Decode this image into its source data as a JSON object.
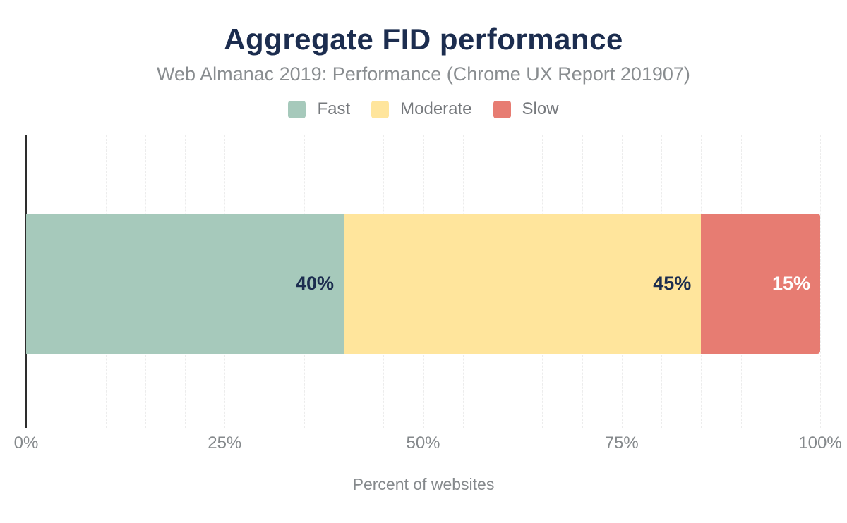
{
  "header": {
    "title": "Aggregate FID performance",
    "subtitle": "Web Almanac 2019: Performance (Chrome UX Report 201907)"
  },
  "chart_data": {
    "type": "bar",
    "orientation": "horizontal",
    "stacked": true,
    "title": "Aggregate FID performance",
    "subtitle": "Web Almanac 2019: Performance (Chrome UX Report 201907)",
    "xlabel": "Percent of websites",
    "categories": [
      "websites"
    ],
    "series": [
      {
        "name": "Fast",
        "values": [
          40
        ],
        "color": "#a6c9bb",
        "data_label": "40%",
        "label_color": "#1c2d4f"
      },
      {
        "name": "Moderate",
        "values": [
          45
        ],
        "color": "#ffe59c",
        "data_label": "45%",
        "label_color": "#1c2d4f"
      },
      {
        "name": "Slow",
        "values": [
          15
        ],
        "color": "#e77c72",
        "data_label": "15%",
        "label_color": "#ffffff"
      }
    ],
    "xlim": [
      0,
      100
    ],
    "x_ticks": [
      {
        "value": 0,
        "label": "0%"
      },
      {
        "value": 25,
        "label": "25%"
      },
      {
        "value": 50,
        "label": "50%"
      },
      {
        "value": 75,
        "label": "75%"
      },
      {
        "value": 100,
        "label": "100%"
      }
    ],
    "grid": true,
    "gridline_step_percent": 5,
    "legend_position": "top",
    "styles": {
      "background": "#ffffff",
      "title_color": "#1c2d4f",
      "subtitle_color": "#898d90",
      "legend_text_color": "#76797d",
      "tick_text_color": "#85898c",
      "axis_line_color": "#2d2d2d",
      "gridline_color": "#ececec"
    }
  }
}
